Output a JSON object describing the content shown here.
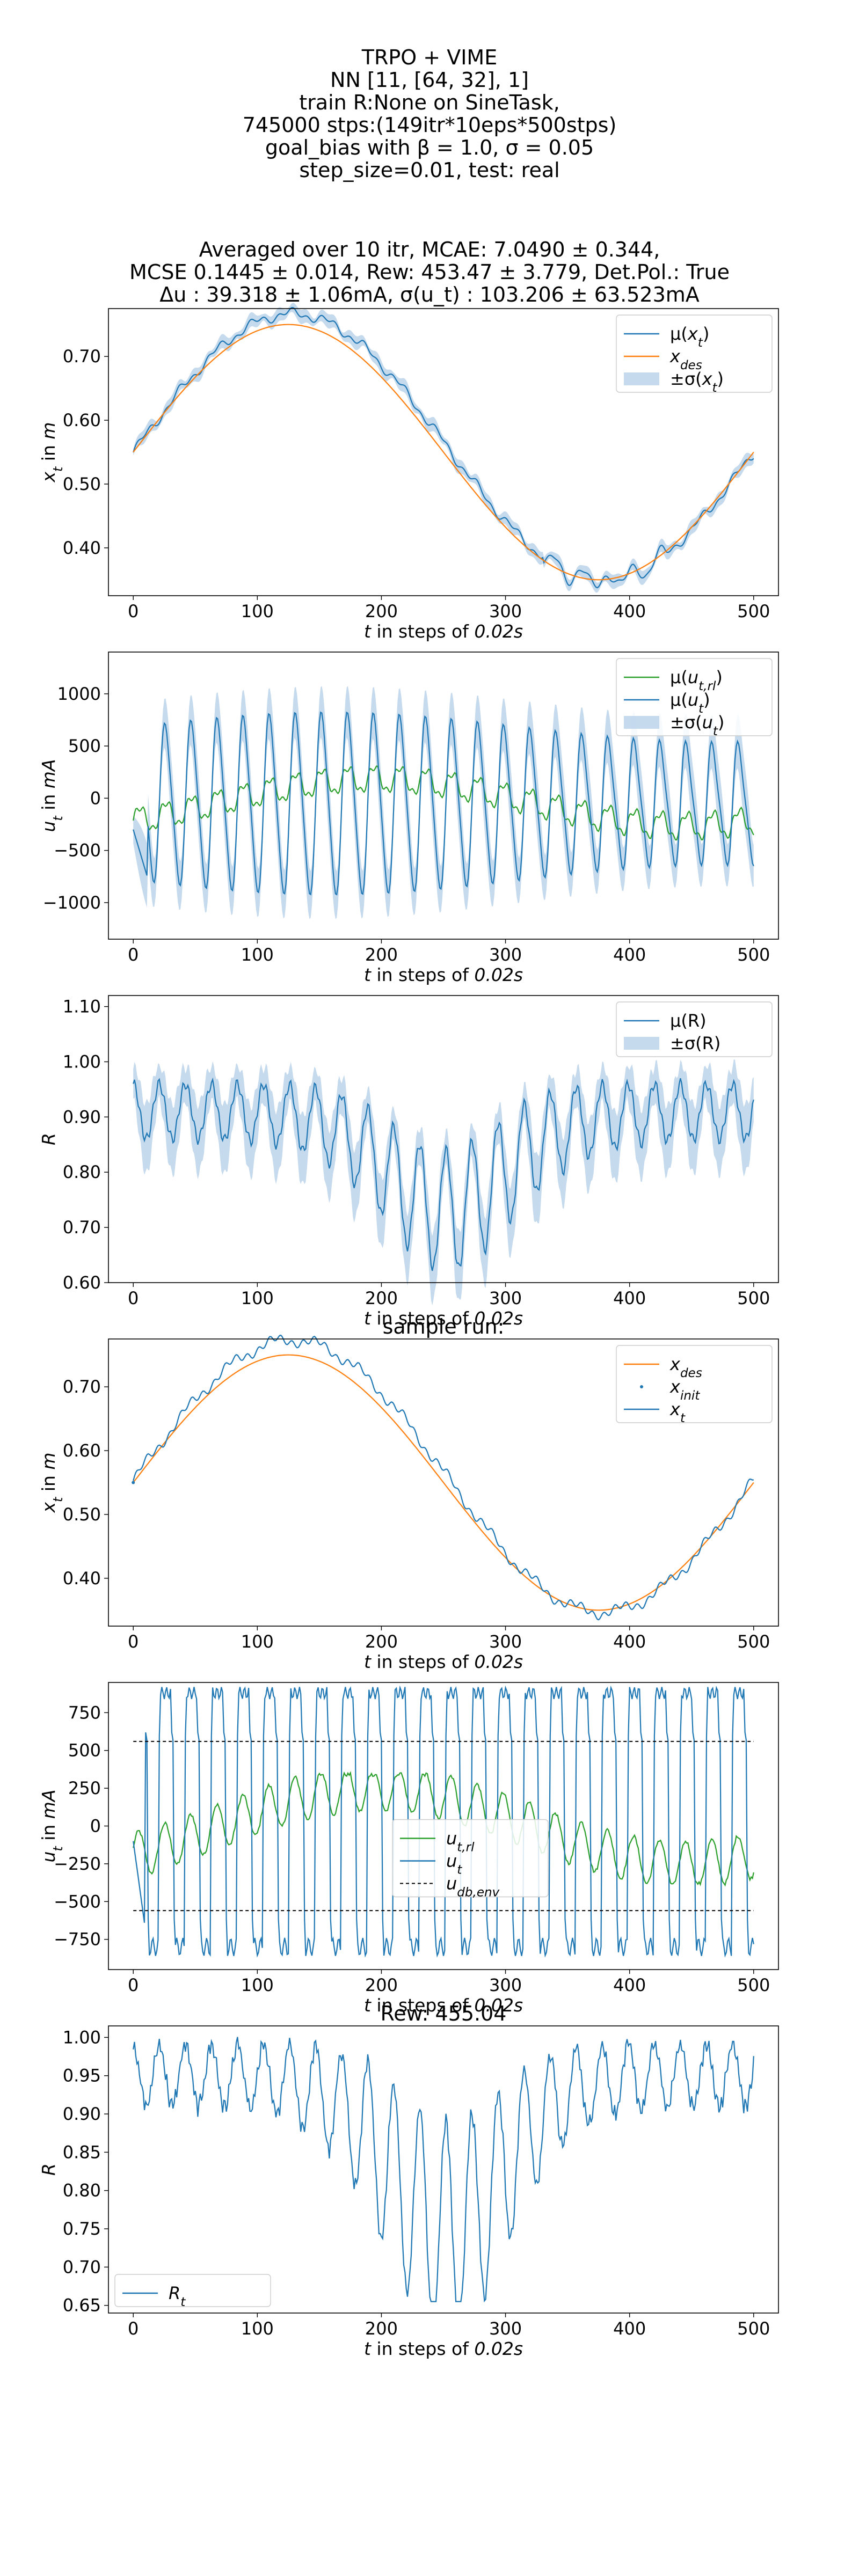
{
  "figure": {
    "header_lines": [
      "TRPO + VIME",
      "NN [11, [64, 32], 1]",
      "train R:None on SineTask,",
      "745000 stps:(149itr*10eps*500stps)",
      "goal_bias with β = 1.0, σ = 0.05",
      "step_size=0.01, test: real"
    ],
    "summary_lines": [
      "Averaged over 10 itr, MCAE: 7.0490 ± 0.344,",
      "MCSE 0.1445 ± 0.014, Rew: 453.47 ± 3.779, Det.Pol.: True",
      "Δu : 39.318 ± 1.06mA, σ(u_t) : 103.206 ± 63.523mA"
    ]
  },
  "chart_data": [
    {
      "type": "line",
      "title": "",
      "xlabel": "t in steps of 0.02s",
      "ylabel": "x_t in m",
      "xlim": [
        -20,
        520
      ],
      "ylim": [
        0.325,
        0.775
      ],
      "xticks": [
        0,
        100,
        200,
        300,
        400,
        500
      ],
      "yticks": [
        0.4,
        0.5,
        0.6,
        0.7
      ],
      "grid": false,
      "legend": "top-right",
      "series": [
        {
          "name": "μ(x_t)",
          "role": "line",
          "color": "#1f77b4",
          "kind": "mean_x"
        },
        {
          "name": "x_des",
          "role": "line",
          "color": "#ff7f0e",
          "kind": "xdes"
        },
        {
          "name": "±σ(x_t)",
          "role": "band",
          "color": "#aecbe6",
          "kind": "mean_x",
          "band_width": 0.008
        }
      ]
    },
    {
      "type": "line",
      "title": "",
      "xlabel": "t in steps of 0.02s",
      "ylabel": "u_t in mA",
      "xlim": [
        -20,
        520
      ],
      "ylim": [
        -1350,
        1400
      ],
      "xticks": [
        0,
        100,
        200,
        300,
        400,
        500
      ],
      "yticks": [
        -1000,
        -500,
        0,
        500,
        1000
      ],
      "grid": false,
      "legend": "top-right",
      "series": [
        {
          "name": "μ(u_t,rl)",
          "role": "line",
          "color": "#2ca02c",
          "kind": "urlmean"
        },
        {
          "name": "μ(u_t)",
          "role": "line",
          "color": "#1f77b4",
          "kind": "umean"
        },
        {
          "name": "±σ(u_t)",
          "role": "band",
          "color": "#aecbe6",
          "kind": "umean",
          "band_width": 220
        }
      ]
    },
    {
      "type": "line",
      "title": "",
      "xlabel": "t in steps of 0.02s",
      "ylabel": "R",
      "xlim": [
        -20,
        520
      ],
      "ylim": [
        0.6,
        1.12
      ],
      "xticks": [
        0,
        100,
        200,
        300,
        400,
        500
      ],
      "yticks": [
        0.6,
        0.7,
        0.8,
        0.9,
        1.0,
        1.1
      ],
      "grid": false,
      "legend": "top-right",
      "series": [
        {
          "name": "μ(R)",
          "role": "line",
          "color": "#1f77b4",
          "kind": "rmean"
        },
        {
          "name": "±σ(R)",
          "role": "band",
          "color": "#aecbe6",
          "kind": "rmean",
          "band_width": 0.045
        }
      ]
    },
    {
      "type": "line",
      "title": "sample run:",
      "xlabel": "t in steps of 0.02s",
      "ylabel": "x_t in m",
      "xlim": [
        -20,
        520
      ],
      "ylim": [
        0.325,
        0.775
      ],
      "xticks": [
        0,
        100,
        200,
        300,
        400,
        500
      ],
      "yticks": [
        0.4,
        0.5,
        0.6,
        0.7
      ],
      "grid": false,
      "legend": "top-right",
      "series": [
        {
          "name": "x_des",
          "role": "line",
          "color": "#ff7f0e",
          "kind": "xdes"
        },
        {
          "name": "x_init",
          "role": "point",
          "color": "#1f77b4",
          "x": 0,
          "y": 0.55
        },
        {
          "name": "x_t",
          "role": "line",
          "color": "#1f77b4",
          "kind": "sample_x"
        }
      ]
    },
    {
      "type": "line",
      "title": "",
      "xlabel": "t in steps of 0.02s",
      "ylabel": "u_t in mA",
      "xlim": [
        -20,
        520
      ],
      "ylim": [
        -950,
        950
      ],
      "xticks": [
        0,
        100,
        200,
        300,
        400,
        500
      ],
      "yticks": [
        -750,
        -500,
        -250,
        0,
        250,
        500,
        750
      ],
      "grid": false,
      "legend": "center",
      "series": [
        {
          "name": "u_t,rl",
          "role": "line",
          "color": "#2ca02c",
          "kind": "url"
        },
        {
          "name": "u_t",
          "role": "line",
          "color": "#1f77b4",
          "kind": "usample"
        },
        {
          "name": "u_db,env",
          "role": "dashed",
          "color": "#000000",
          "values": [
            560,
            -560
          ]
        }
      ]
    },
    {
      "type": "line",
      "title": "Rew: 455.04",
      "xlabel": "t in steps of 0.02s",
      "ylabel": "R",
      "xlim": [
        -20,
        520
      ],
      "ylim": [
        0.64,
        1.015
      ],
      "xticks": [
        0,
        100,
        200,
        300,
        400,
        500
      ],
      "yticks": [
        0.65,
        0.7,
        0.75,
        0.8,
        0.85,
        0.9,
        0.95,
        1.0
      ],
      "grid": false,
      "legend": "bottom-left",
      "series": [
        {
          "name": "R_t",
          "role": "line",
          "color": "#1f77b4",
          "kind": "rsample"
        }
      ]
    }
  ]
}
